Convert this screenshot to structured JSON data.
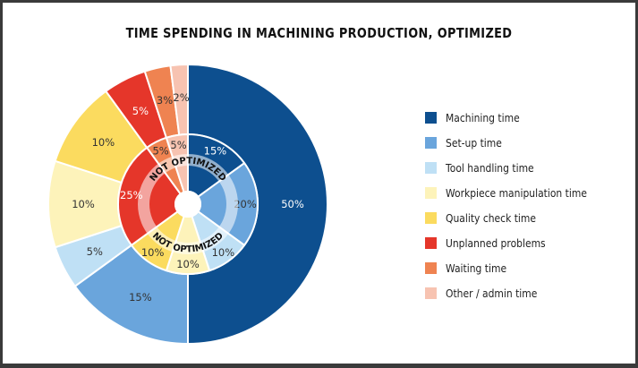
{
  "chart_data": {
    "type": "pie",
    "title": "TIME SPENDING IN MACHINING PRODUCTION, OPTIMIZED",
    "categories": [
      "Machining time",
      "Set-up time",
      "Tool handling time",
      "Workpiece manipulation time",
      "Quality check time",
      "Unplanned problems",
      "Waiting time",
      "Other / admin time"
    ],
    "colors": [
      "#0d4f8f",
      "#6aa5dc",
      "#bfe0f5",
      "#fdf3ba",
      "#fbdb5f",
      "#e5362a",
      "#ef8351",
      "#f7c3b1"
    ],
    "series": [
      {
        "ring_label": "",
        "values": [
          50,
          15,
          5,
          10,
          10,
          5,
          3,
          2
        ],
        "labels": [
          "50%",
          "15%",
          "5%",
          "10%",
          "10%",
          "5%",
          "3%",
          "2%"
        ]
      },
      {
        "ring_label": "NOT OPTIMIZED",
        "values": [
          15,
          20,
          10,
          10,
          10,
          25,
          5,
          5
        ],
        "labels": [
          "15%",
          "20%",
          "10%",
          "10%",
          "10%",
          "25%",
          "5%",
          "5%"
        ]
      }
    ],
    "legend_position": "right"
  }
}
